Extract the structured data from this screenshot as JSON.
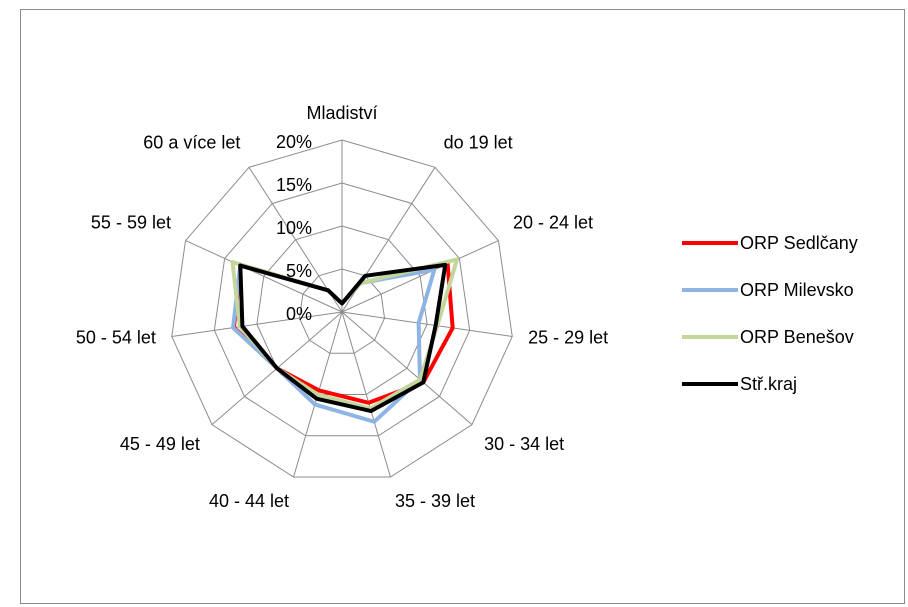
{
  "chart_data": {
    "type": "radar",
    "categories": [
      "Mladiství",
      "do 19 let",
      "20 - 24 let",
      "25 - 29 let",
      "30 - 34 let",
      "35 - 39 let",
      "40 - 44 let",
      "45 - 49 let",
      "50 - 54 let",
      "55 - 59 let",
      "60 a více let"
    ],
    "series": [
      {
        "name": "ORP Sedlčany",
        "color": "#ff0000",
        "values": [
          1,
          4,
          13.5,
          13,
          12.5,
          11,
          9.5,
          10,
          12.7,
          13,
          3
        ]
      },
      {
        "name": "ORP Milevsko",
        "color": "#8eb4e3",
        "values": [
          1,
          4,
          11.8,
          9,
          12,
          13.3,
          11.2,
          10,
          12.8,
          13,
          3
        ]
      },
      {
        "name": "ORP Benešov",
        "color": "#c3d69b",
        "values": [
          1,
          4,
          14.7,
          11.2,
          12,
          11.7,
          10,
          10,
          12,
          14,
          3
        ]
      },
      {
        "name": "Stř.kraj",
        "color": "#000000",
        "values": [
          1,
          5,
          13.2,
          11,
          12.5,
          12,
          10.5,
          10,
          11.7,
          13,
          3
        ]
      }
    ],
    "ylim": [
      0,
      20
    ],
    "yticks": [
      {
        "value": 0,
        "label": "0%"
      },
      {
        "value": 5,
        "label": "5%"
      },
      {
        "value": 10,
        "label": "10%"
      },
      {
        "value": 15,
        "label": "15%"
      },
      {
        "value": 20,
        "label": "20%"
      }
    ],
    "grid": true,
    "legend": "right"
  }
}
